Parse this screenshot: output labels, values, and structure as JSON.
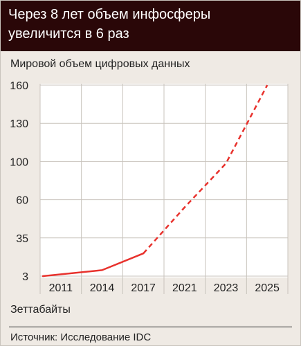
{
  "header": {
    "title": "Через 8 лет объем инфосферы увеличится в 6 раз"
  },
  "chart_data": {
    "type": "line",
    "title": "Через 8 лет объем инфосферы увеличится в 6 раз",
    "subtitle": "Мировой объем цифровых данных",
    "ylabel": "Зеттабайты",
    "xlabel": "",
    "categories": [
      "2011",
      "2014",
      "2017",
      "2021",
      "2023",
      "2025"
    ],
    "y_ticks": [
      3,
      35,
      60,
      100,
      130,
      160
    ],
    "ylim": [
      3,
      160
    ],
    "grid": true,
    "series": [
      {
        "values": [
          3,
          8,
          22,
          55,
          98,
          160
        ],
        "color": "#e8322d",
        "solid_through": "2017",
        "projected_from": "2017"
      }
    ]
  },
  "footer": {
    "source": "Источник: Исследование IDC"
  }
}
